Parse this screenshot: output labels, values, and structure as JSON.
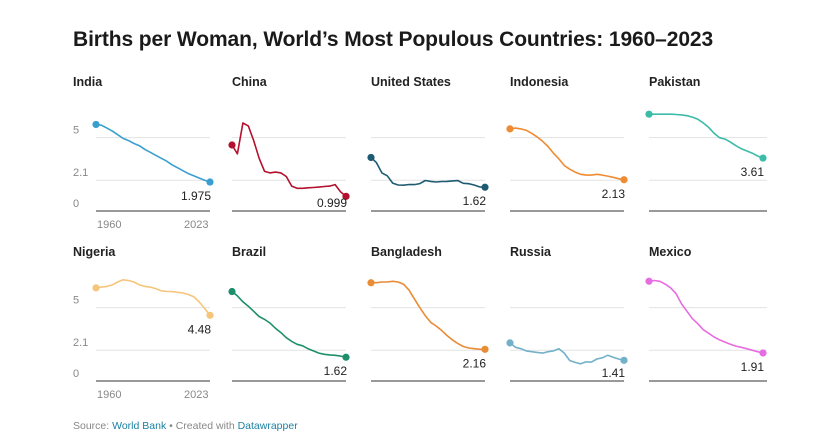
{
  "title": "Births per Woman, World’s Most Populous Countries: 1960–2023",
  "footer": {
    "source_prefix": "Source: ",
    "source_link": "World Bank",
    "separator": " • Created with ",
    "tool_link": "Datawrapper"
  },
  "chart_data": {
    "type": "line",
    "layout": "small-multiples",
    "x": [
      1960,
      1963,
      1966,
      1969,
      1972,
      1975,
      1978,
      1981,
      1984,
      1987,
      1990,
      1993,
      1996,
      1999,
      2002,
      2005,
      2008,
      2011,
      2014,
      2017,
      2020,
      2023
    ],
    "xticks": [
      "1960",
      "2023"
    ],
    "yticks": [
      "0",
      "2.1",
      "5"
    ],
    "ylim": [
      0,
      7.5
    ],
    "series": [
      {
        "name": "India",
        "color": "#3a9fd0",
        "end_label": "1.975",
        "values": [
          5.9,
          5.85,
          5.65,
          5.45,
          5.2,
          4.95,
          4.8,
          4.6,
          4.45,
          4.2,
          4.0,
          3.8,
          3.6,
          3.4,
          3.15,
          2.95,
          2.75,
          2.55,
          2.4,
          2.25,
          2.1,
          1.975
        ]
      },
      {
        "name": "China",
        "color": "#b3112d",
        "end_label": "0.999",
        "values": [
          4.5,
          3.9,
          6.0,
          5.8,
          4.8,
          3.6,
          2.7,
          2.6,
          2.65,
          2.6,
          2.35,
          1.7,
          1.55,
          1.55,
          1.58,
          1.6,
          1.63,
          1.67,
          1.7,
          1.8,
          1.3,
          0.999
        ]
      },
      {
        "name": "United States",
        "color": "#1e5b72",
        "end_label": "1.62",
        "values": [
          3.65,
          3.3,
          2.6,
          2.4,
          1.9,
          1.77,
          1.76,
          1.81,
          1.8,
          1.87,
          2.08,
          2.02,
          1.98,
          2.01,
          2.02,
          2.05,
          2.07,
          1.89,
          1.86,
          1.77,
          1.64,
          1.62
        ]
      },
      {
        "name": "Indonesia",
        "color": "#ef8c33",
        "end_label": "2.13",
        "values": [
          5.6,
          5.65,
          5.6,
          5.5,
          5.3,
          5.05,
          4.75,
          4.4,
          3.95,
          3.55,
          3.1,
          2.85,
          2.65,
          2.5,
          2.45,
          2.45,
          2.5,
          2.45,
          2.38,
          2.3,
          2.2,
          2.13
        ]
      },
      {
        "name": "Pakistan",
        "color": "#3cbca8",
        "end_label": "3.61",
        "values": [
          6.6,
          6.6,
          6.6,
          6.6,
          6.6,
          6.58,
          6.55,
          6.5,
          6.4,
          6.25,
          6.0,
          5.7,
          5.3,
          5.0,
          4.9,
          4.7,
          4.45,
          4.25,
          4.1,
          3.95,
          3.75,
          3.61
        ]
      },
      {
        "name": "Nigeria",
        "color": "#f5c57b",
        "end_label": "4.48",
        "values": [
          6.35,
          6.4,
          6.45,
          6.55,
          6.75,
          6.9,
          6.85,
          6.75,
          6.55,
          6.45,
          6.4,
          6.3,
          6.15,
          6.1,
          6.1,
          6.05,
          6.0,
          5.9,
          5.75,
          5.4,
          4.95,
          4.48
        ]
      },
      {
        "name": "Brazil",
        "color": "#1e8f6b",
        "end_label": "1.62",
        "values": [
          6.1,
          5.8,
          5.4,
          5.1,
          4.75,
          4.4,
          4.2,
          3.95,
          3.6,
          3.3,
          2.95,
          2.7,
          2.5,
          2.4,
          2.2,
          2.05,
          1.9,
          1.82,
          1.78,
          1.75,
          1.7,
          1.62
        ]
      },
      {
        "name": "Bangladesh",
        "color": "#ea8b36",
        "end_label": "2.16",
        "values": [
          6.7,
          6.7,
          6.75,
          6.75,
          6.8,
          6.75,
          6.6,
          6.2,
          5.6,
          5.0,
          4.45,
          4.0,
          3.75,
          3.45,
          3.1,
          2.8,
          2.55,
          2.35,
          2.25,
          2.2,
          2.17,
          2.16
        ]
      },
      {
        "name": "Russia",
        "color": "#73b1c9",
        "end_label": "1.41",
        "values": [
          2.6,
          2.3,
          2.2,
          2.05,
          2.0,
          1.95,
          1.9,
          2.0,
          2.05,
          2.2,
          1.9,
          1.4,
          1.27,
          1.17,
          1.3,
          1.29,
          1.5,
          1.58,
          1.75,
          1.62,
          1.5,
          1.41
        ]
      },
      {
        "name": "Mexico",
        "color": "#e66ce1",
        "end_label": "1.91",
        "values": [
          6.8,
          6.85,
          6.8,
          6.6,
          6.35,
          5.95,
          5.25,
          4.75,
          4.25,
          3.9,
          3.5,
          3.25,
          3.0,
          2.8,
          2.65,
          2.5,
          2.38,
          2.3,
          2.2,
          2.1,
          2.0,
          1.91
        ]
      }
    ]
  }
}
